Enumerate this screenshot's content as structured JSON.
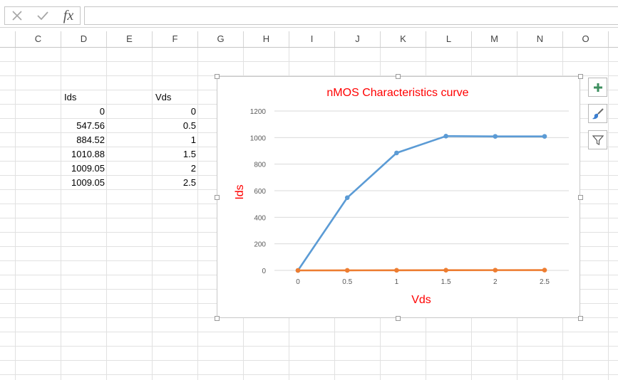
{
  "formula_bar": {
    "cancel_icon": "x-icon",
    "confirm_icon": "checkmark-icon",
    "function_label": "fx",
    "formula_value": ""
  },
  "columns": [
    "C",
    "D",
    "E",
    "F",
    "G",
    "H",
    "I",
    "J",
    "K",
    "L",
    "M",
    "N",
    "O"
  ],
  "sheet": {
    "ids_header": "Ids",
    "vds_header": "Vds",
    "ids_values": [
      "0",
      "547.56",
      "884.52",
      "1010.88",
      "1009.05",
      "1009.05"
    ],
    "vds_values": [
      "0",
      "0.5",
      "1",
      "1.5",
      "2",
      "2.5"
    ]
  },
  "chart_buttons": {
    "add_element_icon": "plus-icon",
    "styles_icon": "paintbrush-icon",
    "filter_icon": "filter-icon"
  },
  "chart_data": {
    "type": "line",
    "title": "nMOS Characteristics curve",
    "xlabel": "Vds",
    "ylabel": "Ids",
    "categories": [
      "0",
      "0.5",
      "1",
      "1.5",
      "2",
      "2.5"
    ],
    "ylim": [
      0,
      1200
    ],
    "yticks": [
      "0",
      "200",
      "400",
      "600",
      "800",
      "1000",
      "1200"
    ],
    "grid": true,
    "legend": "none",
    "series": [
      {
        "color": "#5b9bd5",
        "values": [
          0,
          547.56,
          884.52,
          1010.88,
          1009.05,
          1009.05
        ]
      },
      {
        "color": "#ed7d31",
        "values": [
          0,
          0.5,
          1,
          1.5,
          2,
          2.5
        ]
      }
    ],
    "title_color": "#ff0000"
  }
}
